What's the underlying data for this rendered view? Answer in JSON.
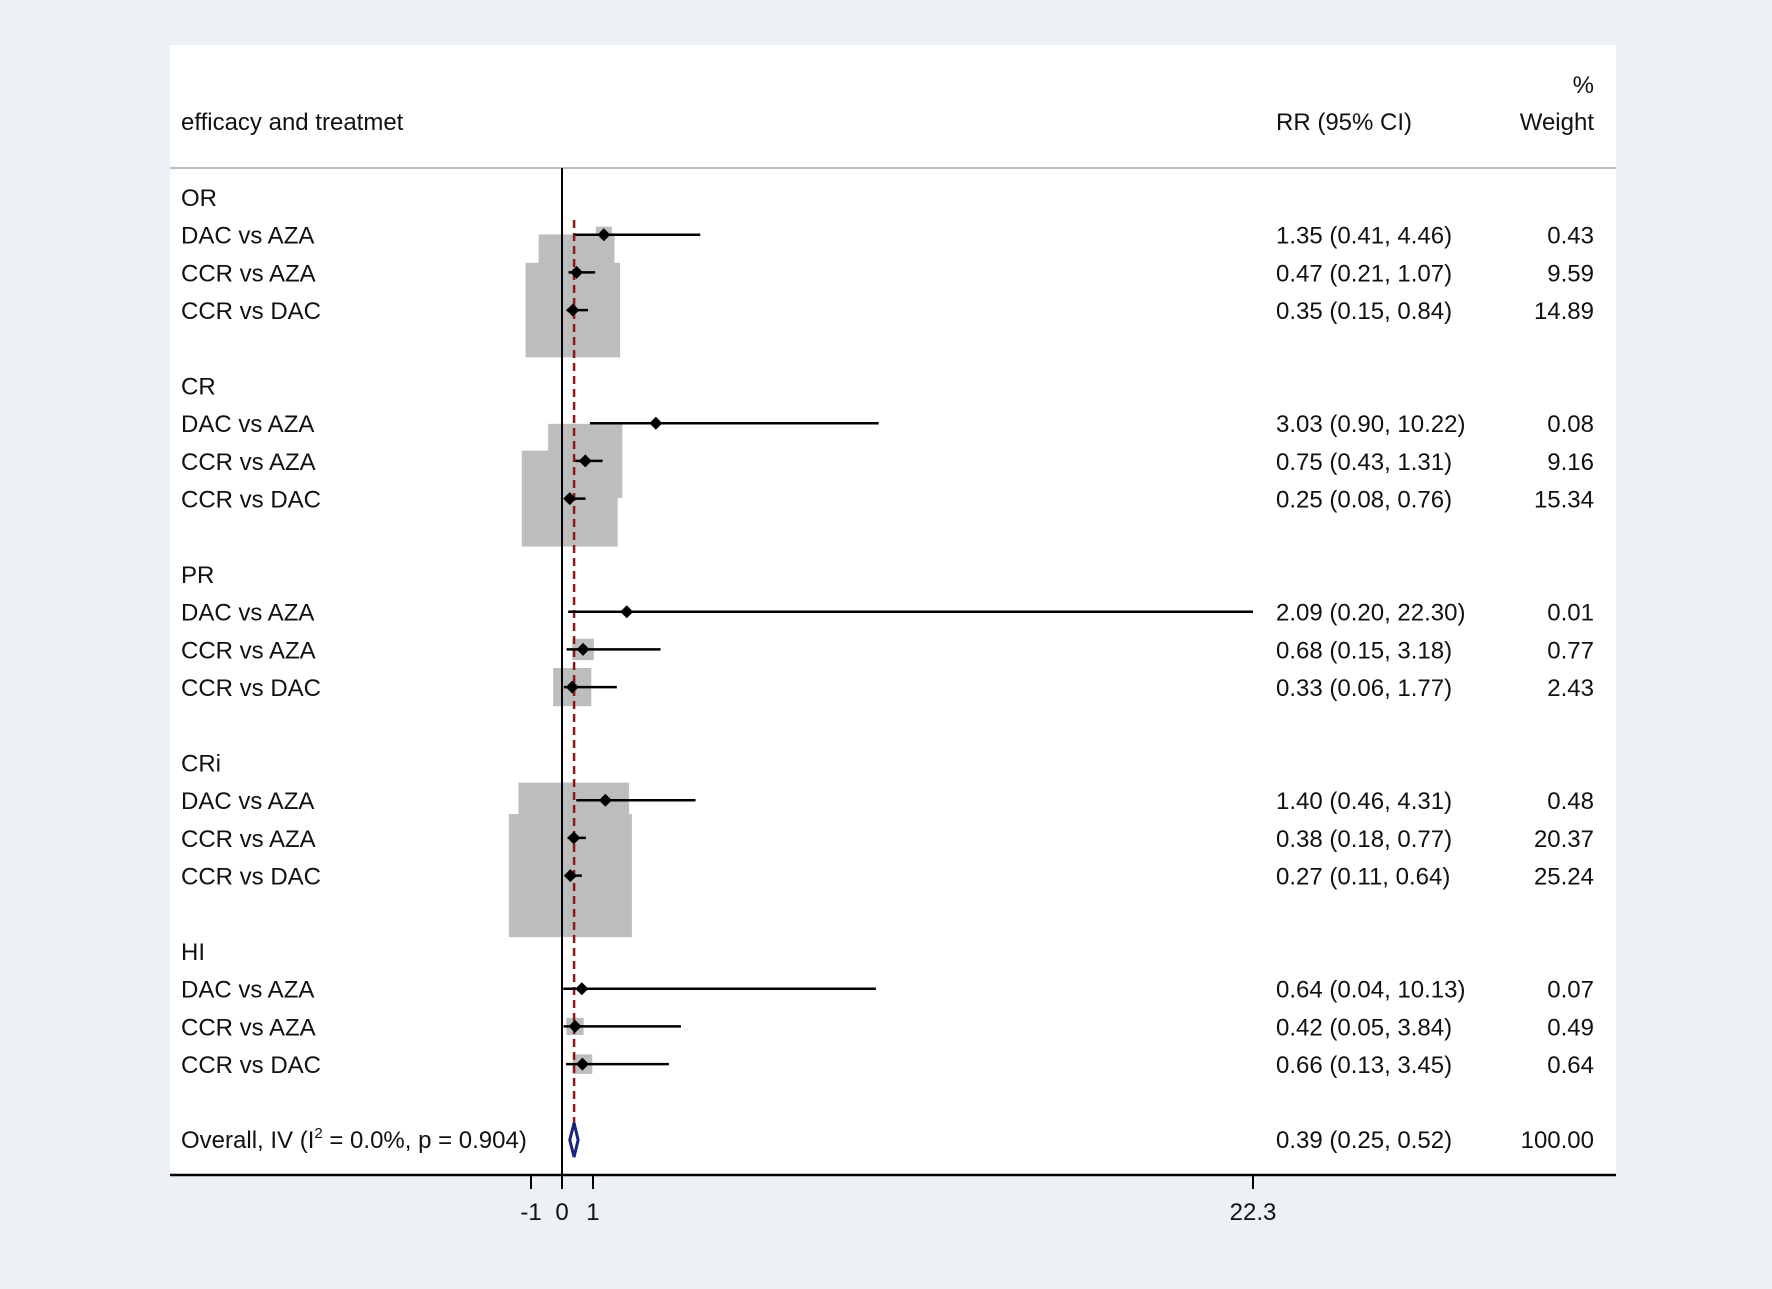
{
  "colors": {
    "background": "#ecf1f4",
    "panel": "#ffffff",
    "box": "#bdbdbd",
    "null_line": "#000000",
    "overall_line": "#8b1a1a",
    "diamond": "#1a237e",
    "ci_line": "#000000"
  },
  "chart_data": {
    "type": "forest",
    "title": "",
    "headers": {
      "label": "efficacy and treatmet",
      "effect": "RR (95% CI)",
      "weight_line1": "%",
      "weight_line2": "Weight"
    },
    "xaxis": {
      "range": [
        -1,
        22.3
      ],
      "ticks": [
        -1,
        0,
        1,
        22.3
      ],
      "tick_labels": [
        "-1",
        "0",
        "1",
        "22.3"
      ],
      "null_value": 0,
      "overall_line_value": 0.39
    },
    "groups": [
      {
        "name": "OR",
        "studies": [
          {
            "label": "DAC vs AZA",
            "rr": 1.35,
            "lo": 0.41,
            "hi": 4.46,
            "text": "1.35 (0.41, 4.46)",
            "weight": 0.43,
            "weight_text": "0.43"
          },
          {
            "label": "CCR vs AZA",
            "rr": 0.47,
            "lo": 0.21,
            "hi": 1.07,
            "text": "0.47 (0.21, 1.07)",
            "weight": 9.59,
            "weight_text": "9.59"
          },
          {
            "label": "CCR vs DAC",
            "rr": 0.35,
            "lo": 0.15,
            "hi": 0.84,
            "text": "0.35 (0.15, 0.84)",
            "weight": 14.89,
            "weight_text": "14.89"
          }
        ]
      },
      {
        "name": "CR",
        "studies": [
          {
            "label": "DAC vs AZA",
            "rr": 3.03,
            "lo": 0.9,
            "hi": 10.22,
            "text": "3.03 (0.90, 10.22)",
            "weight": 0.08,
            "weight_text": "0.08"
          },
          {
            "label": "CCR vs AZA",
            "rr": 0.75,
            "lo": 0.43,
            "hi": 1.31,
            "text": "0.75 (0.43, 1.31)",
            "weight": 9.16,
            "weight_text": "9.16"
          },
          {
            "label": "CCR vs DAC",
            "rr": 0.25,
            "lo": 0.08,
            "hi": 0.76,
            "text": "0.25 (0.08, 0.76)",
            "weight": 15.34,
            "weight_text": "15.34"
          }
        ]
      },
      {
        "name": "PR",
        "studies": [
          {
            "label": "DAC vs AZA",
            "rr": 2.09,
            "lo": 0.2,
            "hi": 22.3,
            "text": "2.09 (0.20, 22.30)",
            "weight": 0.01,
            "weight_text": "0.01"
          },
          {
            "label": "CCR vs AZA",
            "rr": 0.68,
            "lo": 0.15,
            "hi": 3.18,
            "text": "0.68 (0.15, 3.18)",
            "weight": 0.77,
            "weight_text": "0.77"
          },
          {
            "label": "CCR vs DAC",
            "rr": 0.33,
            "lo": 0.06,
            "hi": 1.77,
            "text": "0.33 (0.06, 1.77)",
            "weight": 2.43,
            "weight_text": "2.43"
          }
        ]
      },
      {
        "name": "CRi",
        "studies": [
          {
            "label": "DAC vs AZA",
            "rr": 1.4,
            "lo": 0.46,
            "hi": 4.31,
            "text": "1.40 (0.46, 4.31)",
            "weight": 0.48,
            "weight_text": "0.48"
          },
          {
            "label": "CCR vs AZA",
            "rr": 0.38,
            "lo": 0.18,
            "hi": 0.77,
            "text": "0.38 (0.18, 0.77)",
            "weight": 20.37,
            "weight_text": "20.37"
          },
          {
            "label": "CCR vs DAC",
            "rr": 0.27,
            "lo": 0.11,
            "hi": 0.64,
            "text": "0.27 (0.11, 0.64)",
            "weight": 25.24,
            "weight_text": "25.24"
          }
        ]
      },
      {
        "name": "HI",
        "studies": [
          {
            "label": "DAC vs AZA",
            "rr": 0.64,
            "lo": 0.04,
            "hi": 10.13,
            "text": "0.64 (0.04, 10.13)",
            "weight": 0.07,
            "weight_text": "0.07"
          },
          {
            "label": "CCR vs AZA",
            "rr": 0.42,
            "lo": 0.05,
            "hi": 3.84,
            "text": "0.42 (0.05, 3.84)",
            "weight": 0.49,
            "weight_text": "0.49"
          },
          {
            "label": "CCR vs DAC",
            "rr": 0.66,
            "lo": 0.13,
            "hi": 3.45,
            "text": "0.66 (0.13, 3.45)",
            "weight": 0.64,
            "weight_text": "0.64"
          }
        ]
      }
    ],
    "overall": {
      "label_prefix": "Overall, IV (I",
      "label_sup": "2",
      "label_suffix": " = 0.0%, p = 0.904)",
      "rr": 0.39,
      "lo": 0.25,
      "hi": 0.52,
      "text": "0.39 (0.25, 0.52)",
      "weight_text": "100.00"
    }
  }
}
